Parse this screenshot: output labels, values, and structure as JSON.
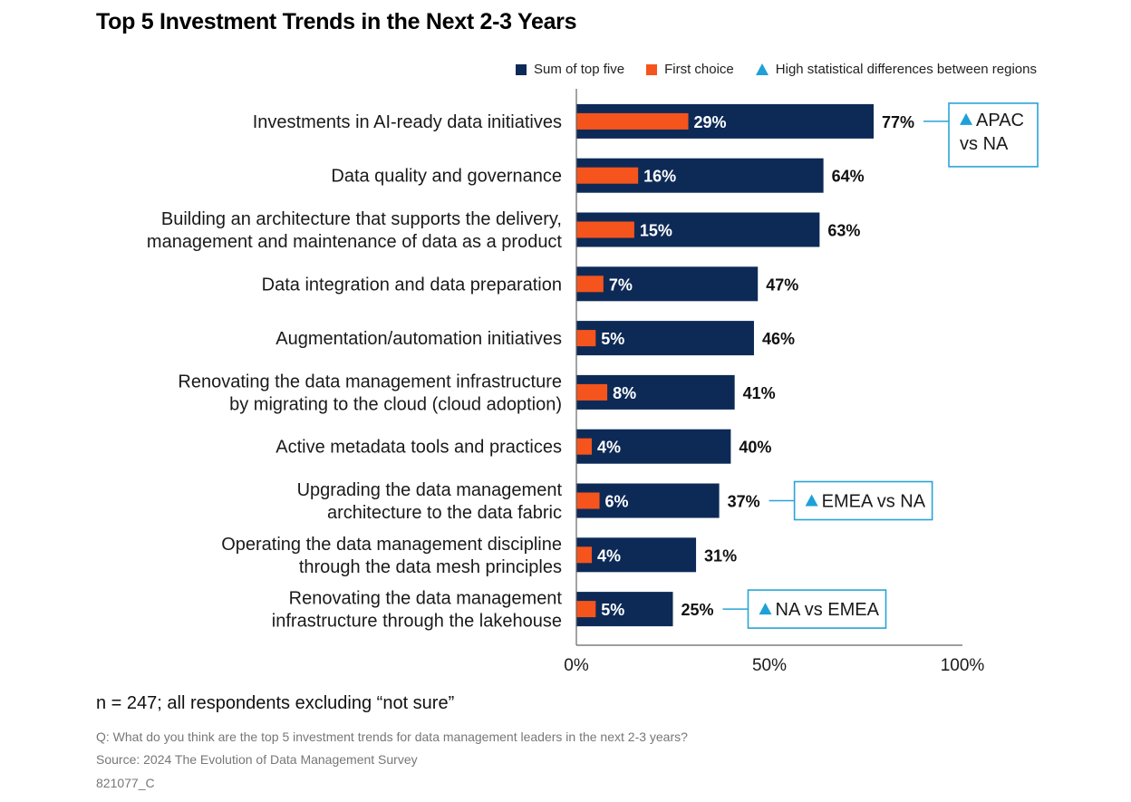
{
  "title": "Top 5 Investment Trends in the Next 2-3 Years",
  "colors": {
    "sum": "#0d2a57",
    "first": "#f5541d",
    "triangle": "#1fa0d8",
    "box": "#2aa3d6"
  },
  "legend": [
    {
      "label": "Sum of top five",
      "shape": "square",
      "color": "#0d2a57"
    },
    {
      "label": "First choice",
      "shape": "square",
      "color": "#f5541d"
    },
    {
      "label": "High statistical differences between regions",
      "shape": "triangle",
      "color": "#1fa0d8"
    }
  ],
  "chart_data": {
    "type": "bar",
    "orientation": "horizontal",
    "categories": [
      [
        "Investments in AI-ready data initiatives"
      ],
      [
        "Data quality and governance"
      ],
      [
        "Building an architecture that supports the delivery,",
        "management and maintenance of data as a product"
      ],
      [
        "Data integration and data preparation"
      ],
      [
        "Augmentation/automation initiatives"
      ],
      [
        "Renovating the data management infrastructure",
        "by migrating to the cloud (cloud adoption)"
      ],
      [
        "Active metadata tools and practices"
      ],
      [
        "Upgrading the data management",
        "architecture to the data fabric"
      ],
      [
        "Operating the data management discipline",
        "through the data mesh principles"
      ],
      [
        "Renovating the data management",
        "infrastructure through the lakehouse"
      ]
    ],
    "series": [
      {
        "name": "Sum of top five",
        "values": [
          77,
          64,
          63,
          47,
          46,
          41,
          40,
          37,
          31,
          25
        ],
        "labels": [
          "77%",
          "64%",
          "63%",
          "47%",
          "46%",
          "41%",
          "40%",
          "37%",
          "31%",
          "25%"
        ]
      },
      {
        "name": "First choice",
        "values": [
          29,
          16,
          15,
          7,
          5,
          8,
          4,
          6,
          4,
          5
        ],
        "labels": [
          "29%",
          "16%",
          "15%",
          "7%",
          "5%",
          "8%",
          "4%",
          "6%",
          "4%",
          "5%"
        ]
      }
    ],
    "annotations": [
      {
        "row": 0,
        "lines": [
          "APAC",
          "vs NA"
        ]
      },
      {
        "row": 7,
        "lines": [
          "EMEA vs NA"
        ]
      },
      {
        "row": 9,
        "lines": [
          "NA vs EMEA"
        ]
      }
    ],
    "xlim": [
      0,
      100
    ],
    "xticks": [
      "0%",
      "50%",
      "100%"
    ]
  },
  "footnote": "n = 247; all respondents excluding “not sure”",
  "question": "Q: What do you think are the top 5 investment trends for data management leaders in the next 2-3 years?",
  "source": "Source: 2024 The Evolution of Data Management Survey",
  "doc_id": "821077_C"
}
